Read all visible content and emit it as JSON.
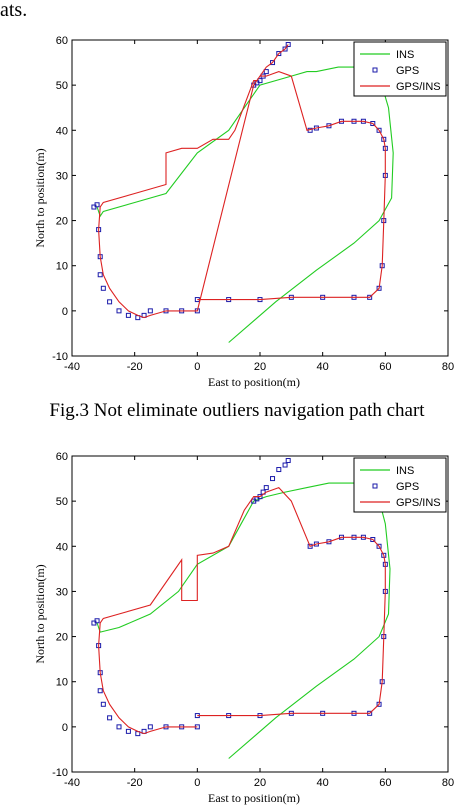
{
  "page": {
    "top_fragment": "ats.",
    "captions": [
      "Fig.3  Not eliminate outliers navigation path chart"
    ]
  },
  "chart_data": [
    {
      "type": "line",
      "title": "",
      "xlabel": "East to position(m)",
      "ylabel": "North to position(m)",
      "xlim": [
        -40,
        80
      ],
      "ylim": [
        -10,
        60
      ],
      "xticks": [
        -40,
        -20,
        0,
        20,
        40,
        60,
        80
      ],
      "yticks": [
        -10,
        0,
        10,
        20,
        30,
        40,
        50,
        60
      ],
      "grid": false,
      "legend_position": "top-right",
      "series": [
        {
          "name": "INS",
          "style": "line",
          "color": "#22cc22",
          "x": [
            10,
            25,
            38,
            50,
            58,
            62,
            62.5,
            61,
            58,
            52,
            45,
            38,
            35,
            30,
            20,
            15,
            10,
            0,
            -10,
            -20,
            -30,
            -31,
            -32
          ],
          "y": [
            -7,
            2,
            9,
            15,
            20,
            25,
            35,
            45,
            52,
            54,
            54,
            53,
            53,
            52,
            50,
            45,
            40,
            35,
            26,
            24,
            22,
            21,
            23
          ]
        },
        {
          "name": "GPS",
          "style": "marker",
          "color": "#1a1aaa",
          "x": [
            0,
            10,
            20,
            30,
            40,
            50,
            55,
            58,
            59,
            59.5,
            60,
            60,
            59.5,
            58,
            56,
            53,
            50,
            46,
            42,
            38,
            36,
            -33,
            -32,
            -31.5,
            -31,
            -31,
            -30,
            -28,
            -25,
            -22,
            -19,
            -17,
            -15,
            -10,
            -5,
            0,
            18,
            19,
            20,
            21,
            22,
            24,
            26,
            28,
            29
          ],
          "y": [
            2.5,
            2.5,
            2.5,
            3,
            3,
            3,
            3,
            5,
            10,
            20,
            30,
            36,
            38,
            40,
            41.5,
            42,
            42,
            42,
            41,
            40.5,
            40,
            23,
            23.5,
            18,
            12,
            8,
            5,
            2,
            0,
            -1,
            -1.5,
            -1,
            0,
            0,
            0,
            0,
            50,
            50.5,
            51,
            52,
            53,
            55,
            57,
            58,
            59
          ]
        },
        {
          "name": "GPS/INS",
          "style": "line",
          "color": "#dd2222",
          "x": [
            0,
            10,
            20,
            30,
            40,
            50,
            55,
            58,
            59,
            59.5,
            60,
            60,
            59.5,
            58,
            56,
            53,
            50,
            46,
            42,
            38,
            35,
            30,
            26,
            22,
            20,
            19,
            18,
            12,
            10,
            5,
            0,
            0,
            -5,
            -10,
            -10,
            -20,
            -30,
            -31,
            -31.5,
            -31,
            -30,
            -28,
            -25,
            -22,
            -19,
            -17,
            -15,
            -10,
            -5,
            0,
            18,
            20,
            22,
            24,
            26,
            28,
            29
          ],
          "y": [
            2.5,
            2.5,
            2.5,
            3,
            3,
            3,
            3,
            5,
            10,
            20,
            30,
            36,
            38,
            40,
            41.5,
            42,
            42,
            42,
            41,
            40.5,
            40,
            52,
            53,
            52,
            52,
            51,
            51,
            40,
            38,
            38,
            36,
            36,
            36,
            35,
            28,
            26,
            24,
            23,
            18,
            12,
            8,
            5,
            2,
            0,
            -1,
            -1.5,
            -1,
            0,
            0,
            0,
            50,
            52,
            54,
            55,
            57,
            58,
            59
          ]
        }
      ]
    },
    {
      "type": "line",
      "title": "",
      "xlabel": "East to position(m)",
      "ylabel": "North to position(m)",
      "xlim": [
        -40,
        80
      ],
      "ylim": [
        -10,
        60
      ],
      "xticks": [
        -40,
        -20,
        0,
        20,
        40,
        60,
        80
      ],
      "yticks": [
        -10,
        0,
        10,
        20,
        30,
        40,
        50,
        60
      ],
      "grid": false,
      "legend_position": "top-right",
      "series": [
        {
          "name": "INS",
          "style": "line",
          "color": "#22cc22",
          "x": [
            10,
            25,
            38,
            50,
            58,
            61,
            61.5,
            60,
            57,
            50,
            42,
            35,
            28,
            22,
            18,
            14,
            10,
            0,
            -6,
            -15,
            -25,
            -31,
            -32
          ],
          "y": [
            -7,
            2,
            9,
            15,
            20,
            25,
            35,
            45,
            53,
            54,
            54,
            53,
            52,
            51,
            50,
            45,
            40,
            36,
            30,
            25,
            22,
            21,
            23
          ]
        },
        {
          "name": "GPS",
          "style": "marker",
          "color": "#1a1aaa",
          "x": [
            0,
            10,
            20,
            30,
            40,
            50,
            55,
            58,
            59,
            59.5,
            60,
            60,
            59.5,
            58,
            56,
            53,
            50,
            46,
            42,
            38,
            36,
            -33,
            -32,
            -31.5,
            -31,
            -31,
            -30,
            -28,
            -25,
            -22,
            -19,
            -17,
            -15,
            -10,
            -5,
            0,
            18,
            19,
            20,
            21,
            22,
            24,
            26,
            28,
            29
          ],
          "y": [
            2.5,
            2.5,
            2.5,
            3,
            3,
            3,
            3,
            5,
            10,
            20,
            30,
            36,
            38,
            40,
            41.5,
            42,
            42,
            42,
            41,
            40.5,
            40,
            23,
            23.5,
            18,
            12,
            8,
            5,
            2,
            0,
            -1,
            -1.5,
            -1,
            0,
            0,
            0,
            0,
            50,
            50.5,
            51,
            52,
            53,
            55,
            57,
            58,
            59
          ]
        },
        {
          "name": "GPS/INS",
          "style": "line",
          "color": "#dd2222",
          "x": [
            0,
            10,
            20,
            30,
            40,
            50,
            55,
            58,
            59,
            59.5,
            60,
            60,
            59.5,
            58,
            56,
            53,
            50,
            46,
            42,
            38,
            36,
            30,
            26,
            22,
            20,
            18,
            15,
            10,
            5,
            0,
            0,
            -5,
            -5,
            -15,
            -25,
            -30,
            -31,
            -31.5,
            -31,
            -30,
            -28,
            -25,
            -22,
            -19,
            -17,
            -15,
            -10,
            -5,
            0
          ],
          "y": [
            2.5,
            2.5,
            2.5,
            3,
            3,
            3,
            3,
            5,
            10,
            20,
            30,
            36,
            38,
            40,
            41.5,
            42,
            42,
            42,
            41,
            40.5,
            40,
            50,
            53,
            52,
            51,
            51,
            48,
            40,
            38.5,
            38,
            28,
            28,
            37,
            27,
            25,
            24,
            23,
            18,
            12,
            8,
            5,
            2,
            0,
            -1,
            -1.5,
            -1,
            0,
            0,
            0
          ]
        }
      ]
    }
  ]
}
